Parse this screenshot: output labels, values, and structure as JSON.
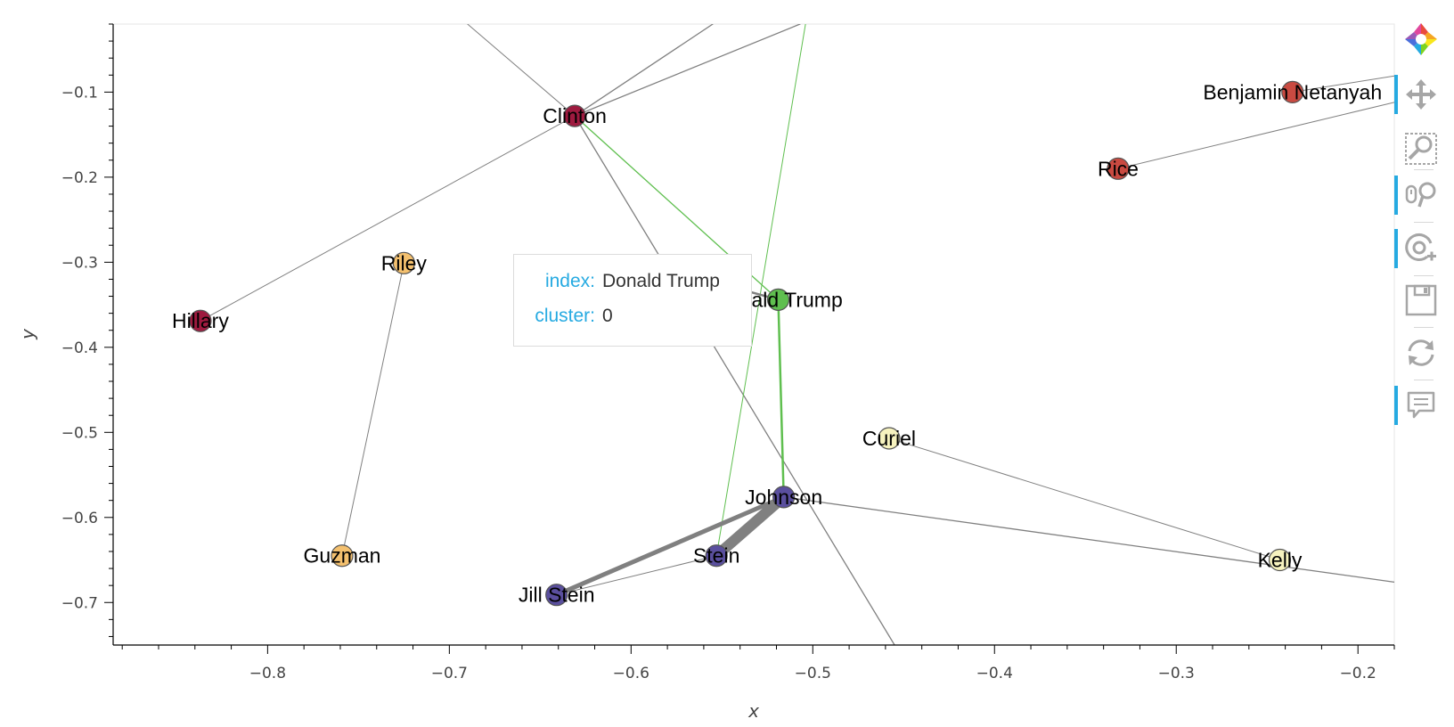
{
  "chart_data": {
    "type": "scatter",
    "subtype": "network-graph",
    "xlabel": "x",
    "ylabel": "y",
    "xlim": [
      -0.885,
      -0.18
    ],
    "ylim": [
      -0.75,
      -0.02
    ],
    "x_ticks": [
      -0.8,
      -0.7,
      -0.6,
      -0.5,
      -0.4,
      -0.3,
      -0.2
    ],
    "y_ticks": [
      -0.1,
      -0.2,
      -0.3,
      -0.4,
      -0.5,
      -0.6,
      -0.7
    ],
    "x_tick_labels": [
      "−0.8",
      "−0.7",
      "−0.6",
      "−0.5",
      "−0.4",
      "−0.3",
      "−0.2"
    ],
    "y_tick_labels": [
      "−0.1",
      "−0.2",
      "−0.3",
      "−0.4",
      "−0.5",
      "−0.6",
      "−0.7"
    ],
    "nodes": [
      {
        "label": "Clinton",
        "x": -0.631,
        "y": -0.128,
        "color": "#9e1a3f",
        "cluster": 1
      },
      {
        "label": "Benjamin Netanyahu",
        "display_label": "Benjamin Netanyah",
        "x": -0.236,
        "y": -0.1,
        "color": "#c94a41",
        "cluster": 2
      },
      {
        "label": "Rice",
        "x": -0.332,
        "y": -0.19,
        "color": "#c94a41",
        "cluster": 2
      },
      {
        "label": "Riley",
        "x": -0.725,
        "y": -0.301,
        "color": "#f4c06e",
        "cluster": 3
      },
      {
        "label": "Hillary",
        "x": -0.837,
        "y": -0.369,
        "color": "#9e1a3f",
        "cluster": 1
      },
      {
        "label": "Donald Trump",
        "display_label": "Donald Trump",
        "x": -0.519,
        "y": -0.344,
        "color": "#5fbf4f",
        "cluster": 0
      },
      {
        "label": "Curiel",
        "x": -0.458,
        "y": -0.507,
        "color": "#f7f3bf",
        "cluster": 4
      },
      {
        "label": "Johnson",
        "x": -0.516,
        "y": -0.576,
        "color": "#5a4f9e",
        "cluster": 5
      },
      {
        "label": "Stein",
        "x": -0.553,
        "y": -0.645,
        "color": "#5a4f9e",
        "cluster": 5
      },
      {
        "label": "Guzman",
        "x": -0.759,
        "y": -0.645,
        "color": "#f4c06e",
        "cluster": 3
      },
      {
        "label": "Jill Stein",
        "x": -0.641,
        "y": -0.691,
        "color": "#5a4f9e",
        "cluster": 5
      },
      {
        "label": "Kelly",
        "x": -0.243,
        "y": -0.65,
        "color": "#f7f3bf",
        "cluster": 4
      }
    ],
    "edges": [
      {
        "source": "Hillary",
        "target": "Clinton",
        "color": "#808080",
        "weight": 1
      },
      {
        "source": "Clinton",
        "target_point": [
          -0.69,
          -0.02
        ],
        "color": "#808080",
        "weight": 1
      },
      {
        "source": "Clinton",
        "target_point": [
          -0.555,
          -0.02
        ],
        "color": "#808080",
        "weight": 1.3
      },
      {
        "source": "Clinton",
        "target_point": [
          -0.507,
          -0.02
        ],
        "color": "#808080",
        "weight": 1.3
      },
      {
        "source": "Clinton",
        "target_point": [
          -0.455,
          -0.75
        ],
        "color": "#808080",
        "weight": 1.3
      },
      {
        "source": "Clinton",
        "target": "Donald Trump",
        "color": "#5fbf4f",
        "weight": 1.3
      },
      {
        "source": "Donald Trump",
        "target": "Johnson",
        "color": "#5fbf4f",
        "weight": 2.5
      },
      {
        "source": "Stein",
        "target_point": [
          -0.504,
          -0.02
        ],
        "color": "#5fbf4f",
        "weight": 1
      },
      {
        "source": "Donald Trump",
        "target_point": [
          -0.56,
          -0.32
        ],
        "color": "#808080",
        "weight": 2.5
      },
      {
        "source": "Johnson",
        "target": "Stein",
        "color": "#808080",
        "weight": 12
      },
      {
        "source": "Johnson",
        "target": "Jill Stein",
        "color": "#808080",
        "weight": 5
      },
      {
        "source": "Jill Stein",
        "target": "Stein",
        "color": "#808080",
        "weight": 1
      },
      {
        "source": "Johnson",
        "target_point": [
          -0.18,
          -0.676
        ],
        "color": "#808080",
        "weight": 1.3
      },
      {
        "source": "Curiel",
        "target": "Kelly",
        "color": "#808080",
        "weight": 1
      },
      {
        "source": "Riley",
        "target": "Guzman",
        "color": "#808080",
        "weight": 1
      },
      {
        "source": "Rice",
        "target_point": [
          -0.18,
          -0.112
        ],
        "color": "#808080",
        "weight": 1
      },
      {
        "source": "Benjamin Netanyahu",
        "target_point": [
          -0.18,
          -0.081
        ],
        "color": "#808080",
        "weight": 1
      }
    ]
  },
  "tooltip": {
    "index_key": "index:",
    "index_value": "Donald Trump",
    "cluster_key": "cluster:",
    "cluster_value": "0",
    "key_color": "#26aae1"
  },
  "toolbar": {
    "tools": [
      {
        "name": "bokeh-logo",
        "icon": "bokeh-logo-icon",
        "active": false
      },
      {
        "name": "pan",
        "icon": "pan-icon",
        "active": true
      },
      {
        "name": "box-zoom",
        "icon": "box-zoom-icon",
        "active": false
      },
      {
        "name": "wheel-zoom",
        "icon": "wheel-zoom-icon",
        "active": true
      },
      {
        "name": "zoom-in",
        "icon": "zoom-in-icon",
        "active": true
      },
      {
        "name": "save",
        "icon": "save-icon",
        "active": false
      },
      {
        "name": "reset",
        "icon": "reset-icon",
        "active": false
      },
      {
        "name": "hover",
        "icon": "hover-icon",
        "active": true
      }
    ]
  }
}
